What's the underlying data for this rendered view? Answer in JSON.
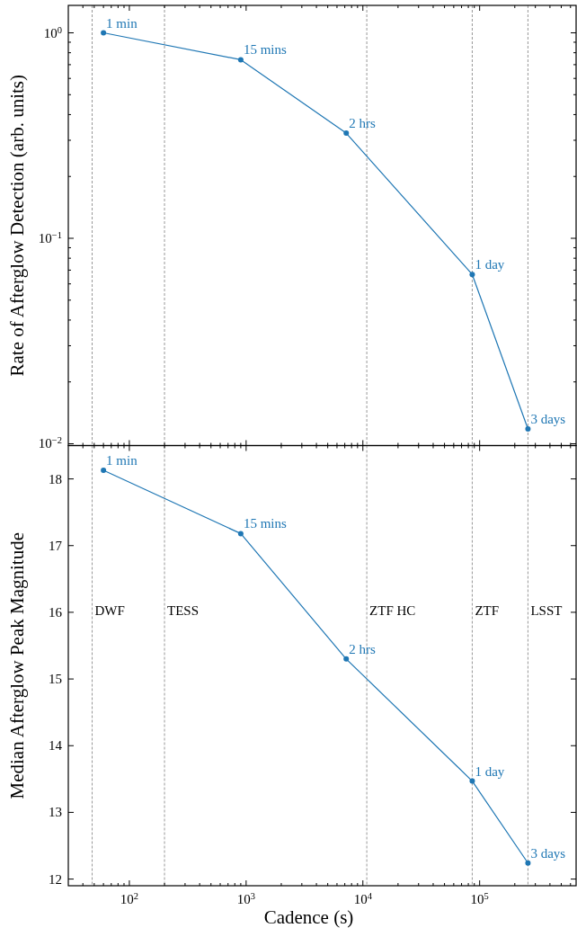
{
  "chart_data": [
    {
      "type": "line",
      "ylabel": "Rate of Afterglow Detection (arb. units)",
      "log": "xy",
      "tick_labels": "y",
      "marker": "circle",
      "line_style": "solid",
      "grid": false,
      "x": [
        60,
        900,
        7200,
        86400,
        259200
      ],
      "series": [
        {
          "color": "#1f77b4",
          "values": [
            1.0,
            0.74,
            0.325,
            0.0667,
            0.0118
          ]
        }
      ],
      "xlim": [
        30,
        670000
      ],
      "xticks": [
        {
          "value": 40,
          "label": null
        },
        {
          "value": 50,
          "label": null
        },
        {
          "value": 60,
          "label": null
        },
        {
          "value": 70,
          "label": null
        },
        {
          "value": 80,
          "label": null
        },
        {
          "value": 90,
          "label": null
        },
        {
          "value": 100,
          "label": null
        },
        {
          "value": 200,
          "label": null
        },
        {
          "value": 300,
          "label": null
        },
        {
          "value": 400,
          "label": null
        },
        {
          "value": 500,
          "label": null
        },
        {
          "value": 600,
          "label": null
        },
        {
          "value": 700,
          "label": null
        },
        {
          "value": 800,
          "label": null
        },
        {
          "value": 900,
          "label": null
        },
        {
          "value": 1000,
          "label": null
        },
        {
          "value": 2000,
          "label": null
        },
        {
          "value": 3000,
          "label": null
        },
        {
          "value": 4000,
          "label": null
        },
        {
          "value": 5000,
          "label": null
        },
        {
          "value": 6000,
          "label": null
        },
        {
          "value": 7000,
          "label": null
        },
        {
          "value": 8000,
          "label": null
        },
        {
          "value": 9000,
          "label": null
        },
        {
          "value": 10000,
          "label": null
        },
        {
          "value": 20000,
          "label": null
        },
        {
          "value": 30000,
          "label": null
        },
        {
          "value": 40000,
          "label": null
        },
        {
          "value": 50000,
          "label": null
        },
        {
          "value": 60000,
          "label": null
        },
        {
          "value": 70000,
          "label": null
        },
        {
          "value": 80000,
          "label": null
        },
        {
          "value": 90000,
          "label": null
        },
        {
          "value": 100000,
          "label": null
        },
        {
          "value": 200000,
          "label": null
        },
        {
          "value": 300000,
          "label": null
        },
        {
          "value": 400000,
          "label": null
        },
        {
          "value": 500000,
          "label": null
        },
        {
          "value": 600000,
          "label": null
        }
      ],
      "ylim": [
        0.0098,
        1.36
      ],
      "yticks": [
        {
          "value": 0.01,
          "label": "10$^{−2}$"
        },
        {
          "value": 0.02,
          "label": null
        },
        {
          "value": 0.03,
          "label": null
        },
        {
          "value": 0.04,
          "label": null
        },
        {
          "value": 0.05,
          "label": null
        },
        {
          "value": 0.06,
          "label": null
        },
        {
          "value": 0.07,
          "label": null
        },
        {
          "value": 0.08,
          "label": null
        },
        {
          "value": 0.09,
          "label": null
        },
        {
          "value": 0.1,
          "label": "10$^{−1}$"
        },
        {
          "value": 0.2,
          "label": null
        },
        {
          "value": 0.3,
          "label": null
        },
        {
          "value": 0.4,
          "label": null
        },
        {
          "value": 0.5,
          "label": null
        },
        {
          "value": 0.6,
          "label": null
        },
        {
          "value": 0.7,
          "label": null
        },
        {
          "value": 0.8,
          "label": null
        },
        {
          "value": 0.9,
          "label": null
        },
        {
          "value": 1,
          "label": "10$^{0}$"
        }
      ],
      "ref_lines": [
        {
          "axis": "x",
          "value": 48,
          "color": "#999999",
          "line_style": "dashed"
        },
        {
          "axis": "x",
          "value": 200,
          "color": "#999999",
          "line_style": "dashed"
        },
        {
          "axis": "x",
          "value": 10800,
          "color": "#999999",
          "line_style": "dashed"
        },
        {
          "axis": "x",
          "value": 86400,
          "color": "#999999",
          "line_style": "dashed"
        },
        {
          "axis": "x",
          "value": 259200,
          "color": "#999999",
          "line_style": "dashed"
        }
      ],
      "annotations": [
        {
          "text": "1 min",
          "x": 60,
          "y": 1.0
        },
        {
          "text": "15 mins",
          "x": 900,
          "y": 0.74
        },
        {
          "text": "2 hrs",
          "x": 7200,
          "y": 0.325
        },
        {
          "text": "1 day",
          "x": 86400,
          "y": 0.0667
        },
        {
          "text": "3 days",
          "x": 259200,
          "y": 0.0118
        }
      ]
    },
    {
      "type": "line",
      "xlabel": "Cadence (s)",
      "ylabel": "Median Afterglow Peak Magnitude",
      "log": "x",
      "marker": "circle",
      "line_style": "solid",
      "grid": false,
      "x": [
        60,
        900,
        7200,
        86400,
        259200
      ],
      "series": [
        {
          "color": "#1f77b4",
          "values": [
            18.13,
            17.18,
            15.3,
            13.47,
            12.24
          ]
        }
      ],
      "xlim": [
        30,
        670000
      ],
      "xticks": [
        {
          "value": 40,
          "label": null
        },
        {
          "value": 50,
          "label": null
        },
        {
          "value": 60,
          "label": null
        },
        {
          "value": 70,
          "label": null
        },
        {
          "value": 80,
          "label": null
        },
        {
          "value": 90,
          "label": null
        },
        {
          "value": 100,
          "label": "10$^{2}$"
        },
        {
          "value": 200,
          "label": null
        },
        {
          "value": 300,
          "label": null
        },
        {
          "value": 400,
          "label": null
        },
        {
          "value": 500,
          "label": null
        },
        {
          "value": 600,
          "label": null
        },
        {
          "value": 700,
          "label": null
        },
        {
          "value": 800,
          "label": null
        },
        {
          "value": 900,
          "label": null
        },
        {
          "value": 1000,
          "label": "10$^{3}$"
        },
        {
          "value": 2000,
          "label": null
        },
        {
          "value": 3000,
          "label": null
        },
        {
          "value": 4000,
          "label": null
        },
        {
          "value": 5000,
          "label": null
        },
        {
          "value": 6000,
          "label": null
        },
        {
          "value": 7000,
          "label": null
        },
        {
          "value": 8000,
          "label": null
        },
        {
          "value": 9000,
          "label": null
        },
        {
          "value": 10000,
          "label": "10$^{4}$"
        },
        {
          "value": 20000,
          "label": null
        },
        {
          "value": 30000,
          "label": null
        },
        {
          "value": 40000,
          "label": null
        },
        {
          "value": 50000,
          "label": null
        },
        {
          "value": 60000,
          "label": null
        },
        {
          "value": 70000,
          "label": null
        },
        {
          "value": 80000,
          "label": null
        },
        {
          "value": 90000,
          "label": null
        },
        {
          "value": 100000,
          "label": "10$^{5}$"
        },
        {
          "value": 200000,
          "label": null
        },
        {
          "value": 300000,
          "label": null
        },
        {
          "value": 400000,
          "label": null
        },
        {
          "value": 500000,
          "label": null
        },
        {
          "value": 600000,
          "label": null
        }
      ],
      "ylim": [
        11.9,
        18.5
      ],
      "yticks": [
        12,
        13,
        14,
        15,
        16,
        17,
        18
      ],
      "ref_lines": [
        {
          "axis": "x",
          "value": 48,
          "label": "DWF",
          "color": "#999999",
          "line_style": "dashed"
        },
        {
          "axis": "x",
          "value": 200,
          "label": "TESS",
          "color": "#999999",
          "line_style": "dashed"
        },
        {
          "axis": "x",
          "value": 10800,
          "label": "ZTF HC",
          "color": "#999999",
          "line_style": "dashed"
        },
        {
          "axis": "x",
          "value": 86400,
          "label": "ZTF",
          "color": "#999999",
          "line_style": "dashed"
        },
        {
          "axis": "x",
          "value": 259200,
          "label": "LSST",
          "color": "#999999",
          "line_style": "dashed"
        }
      ],
      "annotations": [
        {
          "text": "1 min",
          "x": 60,
          "y": 18.13
        },
        {
          "text": "15 mins",
          "x": 900,
          "y": 17.18
        },
        {
          "text": "2 hrs",
          "x": 7200,
          "y": 15.3
        },
        {
          "text": "1 day",
          "x": 86400,
          "y": 13.47
        },
        {
          "text": "3 days",
          "x": 259200,
          "y": 12.24
        }
      ]
    }
  ]
}
